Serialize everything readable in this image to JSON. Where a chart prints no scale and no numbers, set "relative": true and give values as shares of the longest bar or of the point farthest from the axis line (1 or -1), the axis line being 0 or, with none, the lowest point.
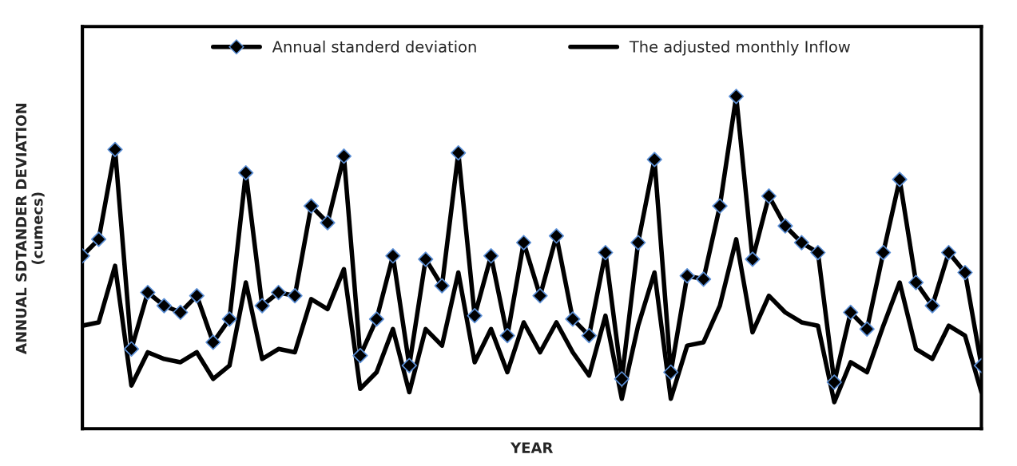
{
  "chart_data": {
    "type": "line",
    "relative": true,
    "xlabel": "YEAR",
    "ylabel": "ANNUAL SDTANDER DEVIATION\n(cumecs)",
    "categories": [
      null,
      null,
      null,
      null,
      null,
      null,
      null,
      null,
      null,
      null,
      null,
      null,
      null,
      null,
      null,
      null,
      null,
      null,
      null,
      null,
      null,
      null,
      null,
      null,
      null,
      null,
      null,
      null,
      null,
      null,
      null,
      null,
      null,
      null,
      null,
      null,
      null,
      null,
      null,
      null,
      null,
      null,
      null,
      null,
      null,
      null,
      null,
      null,
      null,
      null,
      null,
      null,
      null,
      null,
      null,
      null
    ],
    "series": [
      {
        "name": "Annual standerd deviation",
        "color": "#000000",
        "marker": "diamond",
        "values": [
          0.52,
          0.57,
          0.84,
          0.24,
          0.41,
          0.37,
          0.35,
          0.4,
          0.26,
          0.33,
          0.77,
          0.37,
          0.41,
          0.4,
          0.67,
          0.62,
          0.82,
          0.22,
          0.33,
          0.52,
          0.19,
          0.51,
          0.43,
          0.83,
          0.34,
          0.52,
          0.28,
          0.56,
          0.4,
          0.58,
          0.33,
          0.28,
          0.53,
          0.15,
          0.56,
          0.81,
          0.17,
          0.46,
          0.45,
          0.67,
          1,
          0.51,
          0.7,
          0.61,
          0.56,
          0.53,
          0.14,
          0.35,
          0.3,
          0.53,
          0.75,
          0.44,
          0.37,
          0.53,
          0.47,
          0.19
        ]
      },
      {
        "name": "The adjusted monthly Inflow",
        "color": "#000000",
        "marker": "none",
        "values": [
          0.31,
          0.32,
          0.49,
          0.13,
          0.23,
          0.21,
          0.2,
          0.23,
          0.15,
          0.19,
          0.44,
          0.21,
          0.24,
          0.23,
          0.39,
          0.36,
          0.48,
          0.12,
          0.17,
          0.3,
          0.11,
          0.3,
          0.25,
          0.47,
          0.2,
          0.3,
          0.17,
          0.32,
          0.23,
          0.32,
          0.23,
          0.16,
          0.34,
          0.09,
          0.31,
          0.47,
          0.09,
          0.25,
          0.26,
          0.37,
          0.57,
          0.29,
          0.4,
          0.35,
          0.32,
          0.31,
          0.08,
          0.2,
          0.17,
          0.31,
          0.44,
          0.24,
          0.21,
          0.31,
          0.28,
          0.11
        ]
      }
    ],
    "legend": "top",
    "line_style": "solid"
  }
}
